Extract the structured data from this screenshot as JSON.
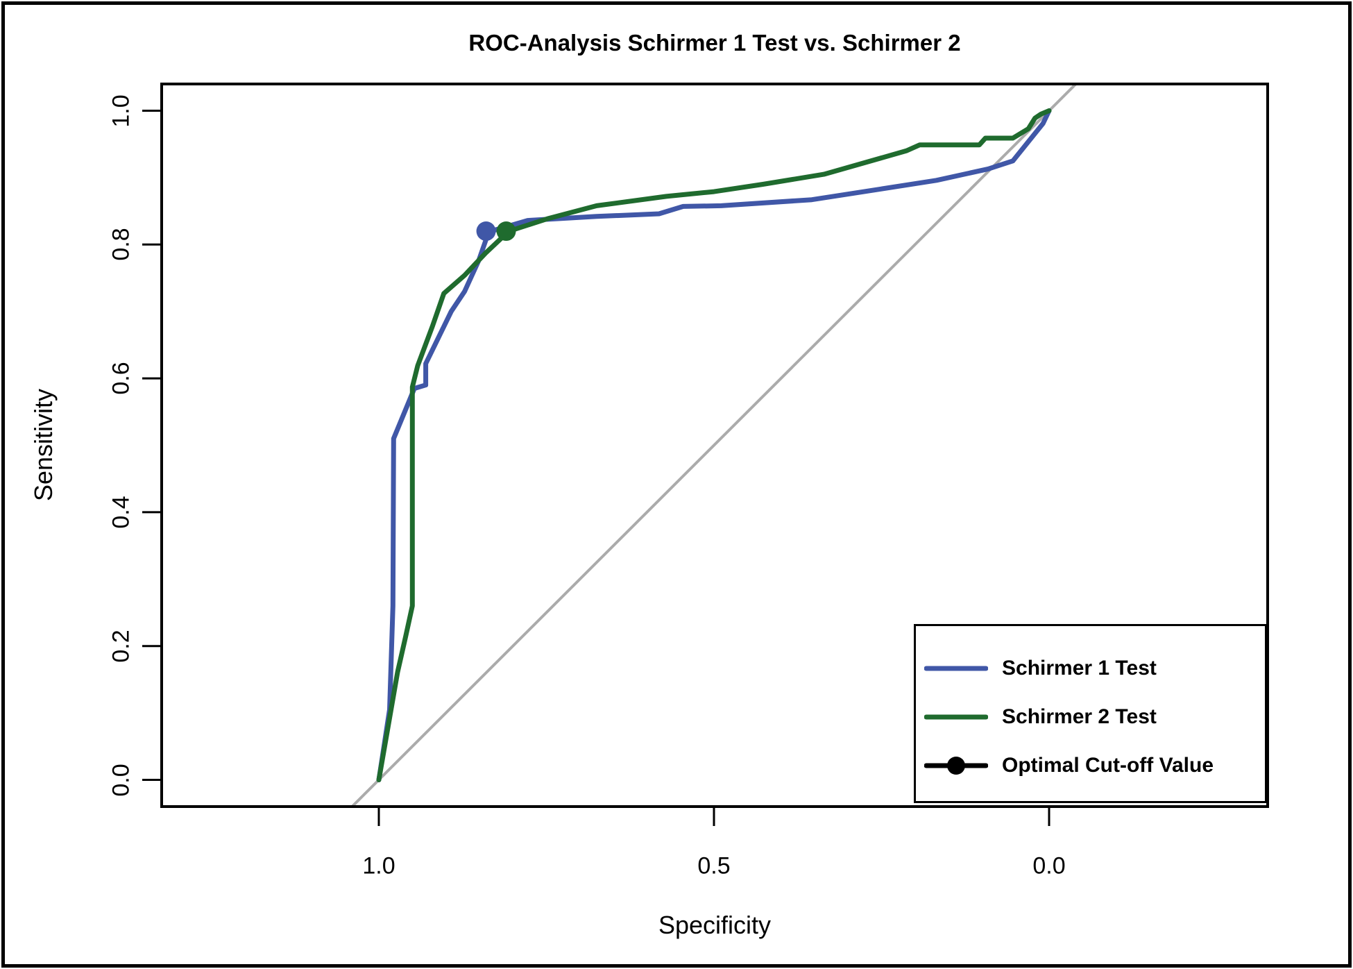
{
  "chart_data": {
    "type": "line",
    "title": "ROC-Analysis Schirmer 1 Test vs. Schirmer 2",
    "xlabel": "Specificity",
    "ylabel": "Sensitivity",
    "background": "#ffffff",
    "grid": false,
    "x_axis": {
      "reversed": true,
      "range": [
        1.0,
        0.0
      ],
      "ticks": [
        1.0,
        0.5,
        0.0
      ],
      "tick_labels": [
        "1.0",
        "0.5",
        "0.0"
      ]
    },
    "y_axis": {
      "range": [
        0.0,
        1.0
      ],
      "ticks": [
        0.0,
        0.2,
        0.4,
        0.6,
        0.8,
        1.0
      ],
      "tick_labels": [
        "0.0",
        "0.2",
        "0.4",
        "0.6",
        "0.8",
        "1.0"
      ]
    },
    "reference_line": {
      "description": "chance diagonal",
      "color": "#ababab",
      "from": {
        "specificity": 1.04,
        "sensitivity": -0.04
      },
      "to": {
        "specificity": -0.04,
        "sensitivity": 1.04
      }
    },
    "series": [
      {
        "name": "Schirmer 1 Test",
        "color": "#4057a7",
        "optimal_cutoff": {
          "specificity": 0.84,
          "sensitivity": 0.82
        },
        "points": [
          [
            1.0,
            0.0
          ],
          [
            0.984,
            0.105
          ],
          [
            0.979,
            0.26
          ],
          [
            0.978,
            0.51
          ],
          [
            0.947,
            0.585
          ],
          [
            0.93,
            0.59
          ],
          [
            0.93,
            0.622
          ],
          [
            0.892,
            0.7
          ],
          [
            0.872,
            0.73
          ],
          [
            0.851,
            0.776
          ],
          [
            0.836,
            0.819
          ],
          [
            0.778,
            0.836
          ],
          [
            0.675,
            0.842
          ],
          [
            0.582,
            0.846
          ],
          [
            0.546,
            0.857
          ],
          [
            0.489,
            0.858
          ],
          [
            0.354,
            0.867
          ],
          [
            0.251,
            0.883
          ],
          [
            0.168,
            0.896
          ],
          [
            0.091,
            0.913
          ],
          [
            0.054,
            0.925
          ],
          [
            0.009,
            0.981
          ],
          [
            0.0,
            1.0
          ]
        ]
      },
      {
        "name": "Schirmer 2 Test",
        "color": "#1f6b2e",
        "optimal_cutoff": {
          "specificity": 0.81,
          "sensitivity": 0.82
        },
        "points": [
          [
            1.0,
            0.0
          ],
          [
            0.972,
            0.161
          ],
          [
            0.96,
            0.214
          ],
          [
            0.95,
            0.26
          ],
          [
            0.95,
            0.587
          ],
          [
            0.942,
            0.619
          ],
          [
            0.92,
            0.678
          ],
          [
            0.903,
            0.727
          ],
          [
            0.872,
            0.754
          ],
          [
            0.841,
            0.787
          ],
          [
            0.806,
            0.82
          ],
          [
            0.747,
            0.839
          ],
          [
            0.675,
            0.858
          ],
          [
            0.571,
            0.872
          ],
          [
            0.5,
            0.879
          ],
          [
            0.427,
            0.89
          ],
          [
            0.336,
            0.905
          ],
          [
            0.213,
            0.94
          ],
          [
            0.193,
            0.949
          ],
          [
            0.104,
            0.949
          ],
          [
            0.095,
            0.959
          ],
          [
            0.054,
            0.959
          ],
          [
            0.031,
            0.973
          ],
          [
            0.021,
            0.989
          ],
          [
            0.012,
            0.995
          ],
          [
            0.0,
            1.0
          ]
        ]
      }
    ],
    "legend": {
      "position": "bottom-right",
      "entries": [
        {
          "label": "Schirmer 1 Test",
          "color": "#4057a7",
          "type": "line"
        },
        {
          "label": "Schirmer 2 Test",
          "color": "#1f6b2e",
          "type": "line"
        },
        {
          "label": "Optimal Cut-off Value",
          "color": "#000000",
          "type": "line-dot"
        }
      ]
    }
  }
}
